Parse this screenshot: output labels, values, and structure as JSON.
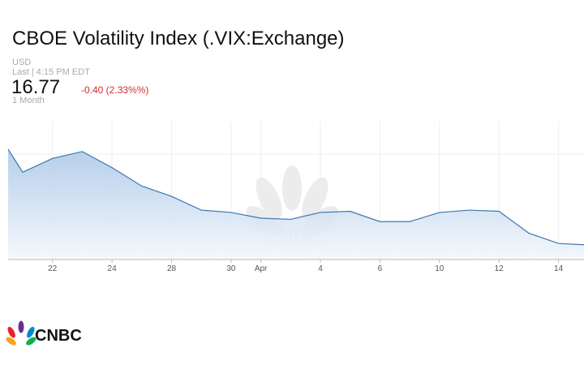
{
  "chart_data": {
    "type": "area",
    "title": "CBOE Volatility Index (.VIX:Exchange)",
    "currency": "USD",
    "last": "Last | 4:15 PM EDT",
    "price": "16.77",
    "change": "-0.40 (2.33%%)",
    "period": "1 Month",
    "logo": "CNBC",
    "categories": [
      null,
      null,
      "22",
      null,
      "24",
      null,
      "28",
      null,
      "30",
      "Apr",
      null,
      "4",
      null,
      "6",
      null,
      "10",
      null,
      "12",
      null,
      "14",
      null
    ],
    "values": [
      25.1,
      23.1,
      24.3,
      24.9,
      23.5,
      21.9,
      21.0,
      19.8,
      19.6,
      19.1,
      19.0,
      19.6,
      19.7,
      18.8,
      18.8,
      19.6,
      19.8,
      19.7,
      17.8,
      16.9,
      16.77
    ],
    "color": "#3b78b5",
    "ylim": [
      15.5,
      27.5
    ],
    "grid": true
  }
}
